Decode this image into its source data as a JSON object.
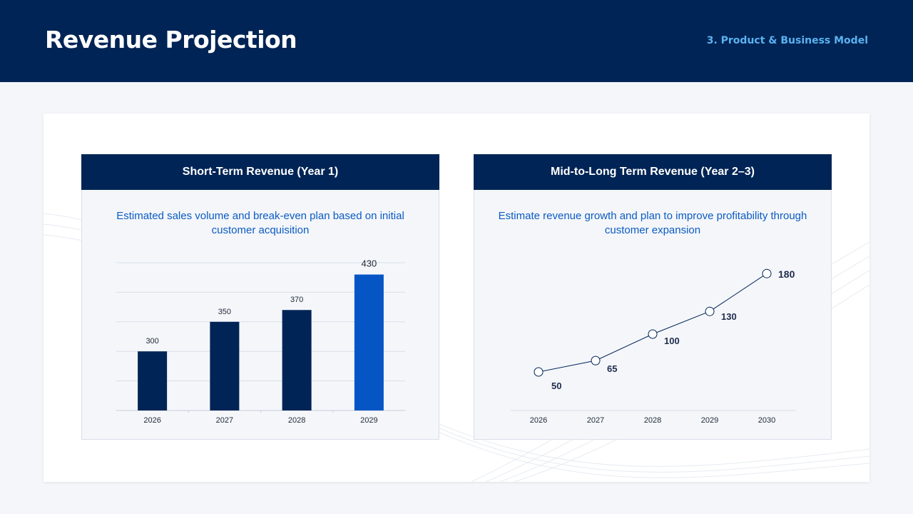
{
  "header": {
    "title": "Revenue Projection",
    "section": "3. Product & Business Model"
  },
  "panels": {
    "short_term": {
      "title": "Short-Term Revenue (Year 1)",
      "description": "Estimated sales volume and break-even plan based on initial customer acquisition"
    },
    "long_term": {
      "title": "Mid-to-Long Term Revenue (Year 2–3)",
      "description": "Estimate revenue growth and plan to improve profitability through customer expansion"
    }
  },
  "colors": {
    "navy": "#002455",
    "accent_blue": "#0556c4",
    "label_blue": "#5bb2f0"
  },
  "chart_data": [
    {
      "type": "bar",
      "categories": [
        "2026",
        "2027",
        "2028",
        "2029"
      ],
      "values": [
        300,
        350,
        370,
        430
      ],
      "highlight_index": 3,
      "ylim": [
        200,
        450
      ],
      "grid": true,
      "title": "",
      "xlabel": "",
      "ylabel": ""
    },
    {
      "type": "line",
      "x": [
        "2026",
        "2027",
        "2028",
        "2029",
        "2030"
      ],
      "values": [
        50,
        65,
        100,
        130,
        180
      ],
      "ylim": [
        0,
        200
      ],
      "grid": false,
      "markers": "hollow-circle",
      "title": "",
      "xlabel": "",
      "ylabel": ""
    }
  ]
}
